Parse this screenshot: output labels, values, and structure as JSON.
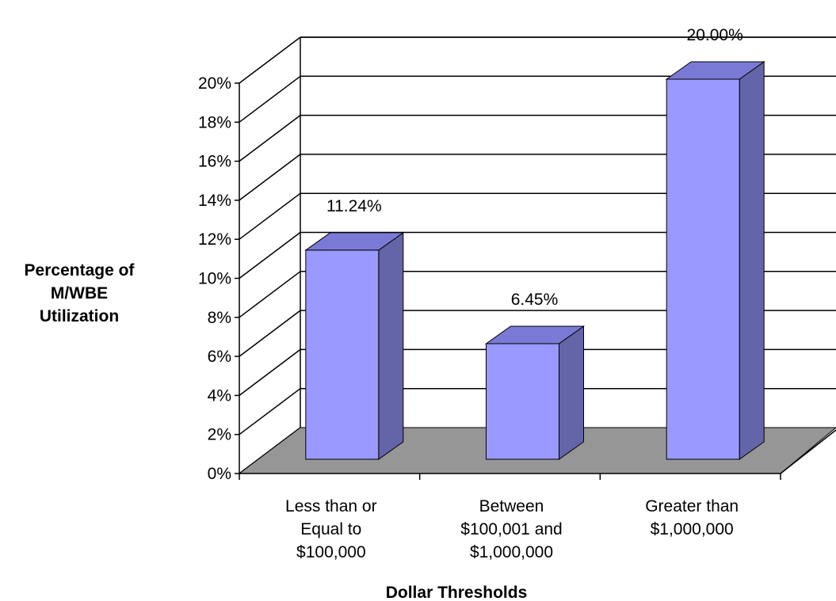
{
  "chart_data": {
    "type": "bar",
    "title": "",
    "xlabel": "Dollar Thresholds",
    "ylabel_lines": [
      "Percentage of",
      "M/WBE",
      "Utilization"
    ],
    "categories": [
      [
        "Less than or",
        "Equal to",
        "$100,000"
      ],
      [
        "Between",
        "$100,001 and",
        "$1,000,000"
      ],
      [
        "Greater than",
        "$1,000,000"
      ]
    ],
    "values": [
      11.24,
      6.45,
      20.0
    ],
    "data_labels": [
      "11.24%",
      "6.45%",
      "20.00%"
    ],
    "ylim": [
      0,
      20
    ],
    "ytick_step": 2,
    "ytick_labels": [
      "0%",
      "2%",
      "4%",
      "6%",
      "8%",
      "10%",
      "12%",
      "14%",
      "16%",
      "18%",
      "20%"
    ],
    "grid": true,
    "three_d": true,
    "colors": {
      "bar_front": "#9999ff",
      "bar_side": "#6464a8",
      "bar_top": "#7a7ad6",
      "floor": "#969696",
      "grid": "#000000"
    }
  }
}
